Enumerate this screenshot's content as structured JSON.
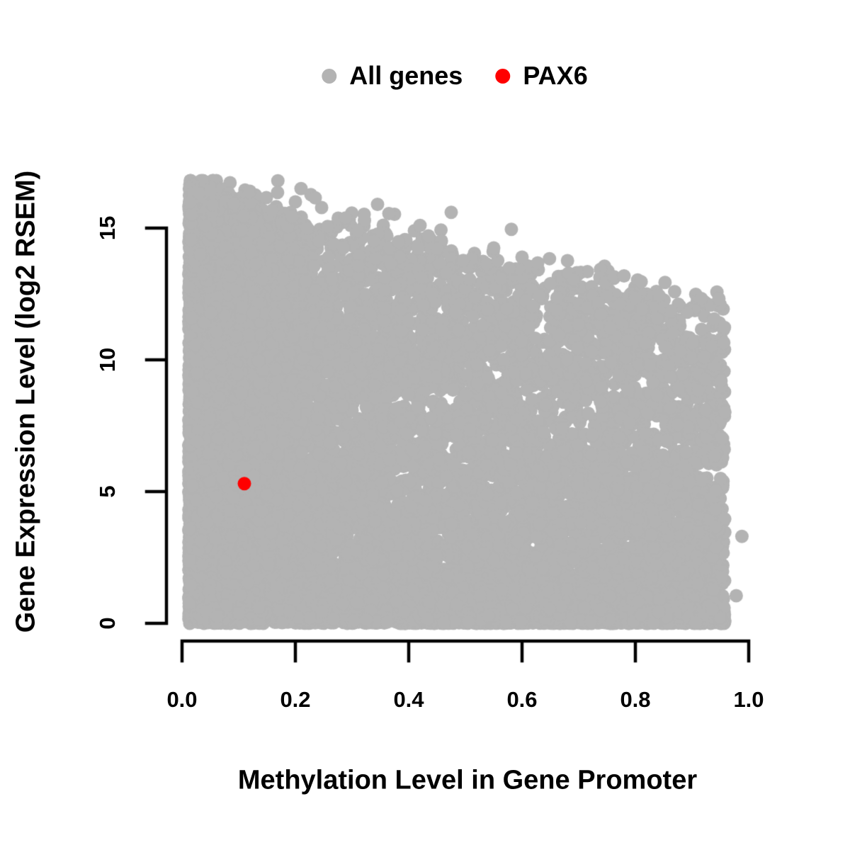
{
  "colors": {
    "background": "#ffffff",
    "axis": "#000000",
    "text": "#000000"
  },
  "chart_data": {
    "type": "scatter",
    "title": "",
    "xlabel": "Methylation Level in Gene Promoter",
    "ylabel": "Gene Expression Level (log2 RSEM)",
    "xlim": [
      0,
      1.0
    ],
    "ylim": [
      0,
      16.8
    ],
    "grid": false,
    "x_ticks": {
      "values": [
        0.0,
        0.2,
        0.4,
        0.6,
        0.8,
        1.0
      ],
      "labels": [
        "0.0",
        "0.2",
        "0.4",
        "0.6",
        "0.8",
        "1.0"
      ]
    },
    "y_ticks": {
      "values": [
        0,
        5,
        10,
        15
      ],
      "labels": [
        "0",
        "5",
        "10",
        "15"
      ]
    },
    "legend": {
      "position": "top-center",
      "items": [
        {
          "label": "All genes",
          "color": "#b3b3b3"
        },
        {
          "label": "PAX6",
          "color": "#ff0000"
        }
      ]
    },
    "series": [
      {
        "name": "All genes",
        "marker": "filled-circle",
        "marker_radius_px": 9.5,
        "color": "#b3b3b3",
        "description": "Dense cloud of ~15000 genes; expression spans 0-16.7 at low methylation, upper envelope declines to ~12 at methylation 0.95; very dense at methylation < 0.2 and along y = 0; cloud ends abruptly at methylation ~0.96",
        "distribution": {
          "seed": 42,
          "n_points": 13000,
          "x_min": 0.012,
          "x_max": 0.958,
          "y_max": 16.8,
          "x_mixture": [
            {
              "type": "half-normal",
              "weight": 0.36,
              "sd": 0.075
            },
            {
              "type": "power",
              "weight": 0.44,
              "exponent": 1.35
            },
            {
              "type": "uniform",
              "weight": 0.2
            }
          ],
          "envelope_intercept": 16.4,
          "envelope_slope": -4.6,
          "envelope_noise_sd": 0.45,
          "y_power_base": 0.85,
          "y_power_x_coef": 0.95,
          "bottom_strip": {
            "n": 2600,
            "y_sd": 0.55,
            "x_exponent": 0.9
          },
          "extra_points_top": [
            [
              0.21,
              16.5
            ],
            [
              0.235,
              16.15
            ],
            [
              0.31,
              14.9
            ],
            [
              0.345,
              15.9
            ],
            [
              0.365,
              15.55
            ],
            [
              0.42,
              15.1
            ],
            [
              0.475,
              15.6
            ],
            [
              0.55,
              14.25
            ],
            [
              0.6,
              13.9
            ]
          ],
          "extra_points_right": [
            [
              0.988,
              3.3
            ],
            [
              0.978,
              1.05
            ]
          ]
        }
      },
      {
        "name": "PAX6",
        "marker": "filled-circle",
        "marker_radius_px": 9.5,
        "color": "#ff0000",
        "points": [
          [
            0.11,
            5.3
          ]
        ]
      }
    ]
  }
}
